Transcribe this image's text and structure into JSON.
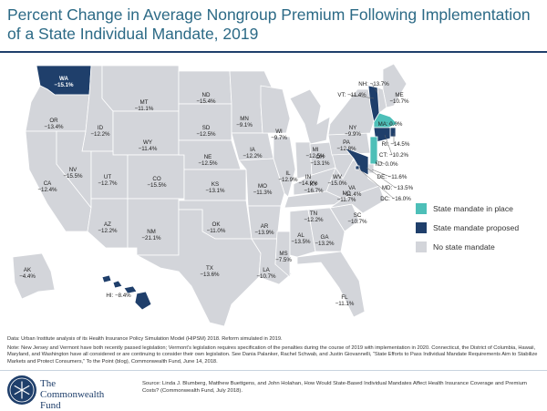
{
  "title": "Percent Change in Average Nongroup Premium Following Implementation of a State Individual Mandate, 2019",
  "colors": {
    "in_place": "#4dbfb8",
    "proposed": "#1f3f6b",
    "none": "#d3d5da",
    "border": "#ffffff",
    "title": "#2c6a86"
  },
  "legend": [
    {
      "key": "in_place",
      "label": "State mandate in place"
    },
    {
      "key": "proposed",
      "label": "State mandate proposed"
    },
    {
      "key": "none",
      "label": "No state mandate"
    }
  ],
  "states": [
    {
      "abbr": "WA",
      "value": "−15.1%",
      "status": "proposed"
    },
    {
      "abbr": "OR",
      "value": "−13.4%",
      "status": "none"
    },
    {
      "abbr": "CA",
      "value": "−12.4%",
      "status": "none"
    },
    {
      "abbr": "ID",
      "value": "−12.2%",
      "status": "none"
    },
    {
      "abbr": "NV",
      "value": "−15.5%",
      "status": "none"
    },
    {
      "abbr": "MT",
      "value": "−11.1%",
      "status": "none"
    },
    {
      "abbr": "WY",
      "value": "−11.4%",
      "status": "none"
    },
    {
      "abbr": "UT",
      "value": "−12.7%",
      "status": "none"
    },
    {
      "abbr": "AZ",
      "value": "−12.2%",
      "status": "none"
    },
    {
      "abbr": "CO",
      "value": "−15.5%",
      "status": "none"
    },
    {
      "abbr": "NM",
      "value": "−21.1%",
      "status": "none"
    },
    {
      "abbr": "ND",
      "value": "−15.4%",
      "status": "none"
    },
    {
      "abbr": "SD",
      "value": "−12.5%",
      "status": "none"
    },
    {
      "abbr": "NE",
      "value": "−12.5%",
      "status": "none"
    },
    {
      "abbr": "KS",
      "value": "−13.1%",
      "status": "none"
    },
    {
      "abbr": "OK",
      "value": "−11.0%",
      "status": "none"
    },
    {
      "abbr": "TX",
      "value": "−13.6%",
      "status": "none"
    },
    {
      "abbr": "MN",
      "value": "−9.1%",
      "status": "none"
    },
    {
      "abbr": "IA",
      "value": "−12.2%",
      "status": "none"
    },
    {
      "abbr": "MO",
      "value": "−11.3%",
      "status": "none"
    },
    {
      "abbr": "AR",
      "value": "−13.9%",
      "status": "none"
    },
    {
      "abbr": "LA",
      "value": "−10.7%",
      "status": "none"
    },
    {
      "abbr": "WI",
      "value": "−9.7%",
      "status": "none"
    },
    {
      "abbr": "IL",
      "value": "−12.9%",
      "status": "none"
    },
    {
      "abbr": "MS",
      "value": "−7.5%",
      "status": "none"
    },
    {
      "abbr": "MI",
      "value": "−12.5%",
      "status": "none"
    },
    {
      "abbr": "IN",
      "value": "−14.9%",
      "status": "none"
    },
    {
      "abbr": "KY",
      "value": "−16.7%",
      "status": "none"
    },
    {
      "abbr": "TN",
      "value": "−12.2%",
      "status": "none"
    },
    {
      "abbr": "AL",
      "value": "−13.5%",
      "status": "none"
    },
    {
      "abbr": "OH",
      "value": "−13.1%",
      "status": "none"
    },
    {
      "abbr": "GA",
      "value": "−13.2%",
      "status": "none"
    },
    {
      "abbr": "FL",
      "value": "−11.1%",
      "status": "none"
    },
    {
      "abbr": "SC",
      "value": "−10.7%",
      "status": "none"
    },
    {
      "abbr": "NC",
      "value": "−11.7%",
      "status": "none"
    },
    {
      "abbr": "VA",
      "value": "−11.4%",
      "status": "none"
    },
    {
      "abbr": "WV",
      "value": "−15.0%",
      "status": "none"
    },
    {
      "abbr": "PA",
      "value": "−12.8%",
      "status": "none"
    },
    {
      "abbr": "NY",
      "value": "−9.9%",
      "status": "none"
    },
    {
      "abbr": "ME",
      "value": "−10.7%",
      "status": "none"
    },
    {
      "abbr": "NH",
      "value": "−13.7%",
      "status": "none"
    },
    {
      "abbr": "VT",
      "value": "−11.4%",
      "status": "proposed"
    },
    {
      "abbr": "MA",
      "value": "0.0%",
      "status": "in_place"
    },
    {
      "abbr": "RI",
      "value": "−14.5%",
      "status": "proposed"
    },
    {
      "abbr": "CT",
      "value": "−10.2%",
      "status": "proposed"
    },
    {
      "abbr": "NJ",
      "value": "0.0%",
      "status": "in_place"
    },
    {
      "abbr": "DE",
      "value": "−11.6%",
      "status": "none"
    },
    {
      "abbr": "MD",
      "value": "−13.5%",
      "status": "proposed"
    },
    {
      "abbr": "DC",
      "value": "−16.0%",
      "status": "proposed"
    },
    {
      "abbr": "AK",
      "value": "−4.4%",
      "status": "none"
    },
    {
      "abbr": "HI",
      "value": "−8.4%",
      "status": "proposed"
    }
  ],
  "notes": {
    "data": "Data: Urban Institute analysis of its Health Insurance Policy Simulation Model (HIPSM) 2018. Reform simulated in 2019.",
    "note": "Note: New Jersey and Vermont have both recently passed legislation; Vermont’s legislation requires specification of the penalties during the course of 2019 with implementation in 2020. Connecticut, the District of Columbia, Hawaii, Maryland, and Washington have all considered or are continuing to consider their own legislation. See Dania Palanker, Rachel Schwab, and Justin Giovannelli, “State Efforts to Pass Individual Mandate Requirements Aim to Stabilize Markets and Protect Consumers,” To the Point (blog), Commonwealth Fund, June 14, 2018."
  },
  "source": "Source: Linda J. Blumberg, Matthew Buettgens, and John Holahan, How Would State-Based Individual Mandates Affect Health Insurance Coverage and Premium Costs? (Commonwealth Fund, July 2018).",
  "logo": {
    "line1": "The",
    "line2": "Commonwealth",
    "line3": "Fund",
    "icon": "snowflake-seal-icon"
  }
}
